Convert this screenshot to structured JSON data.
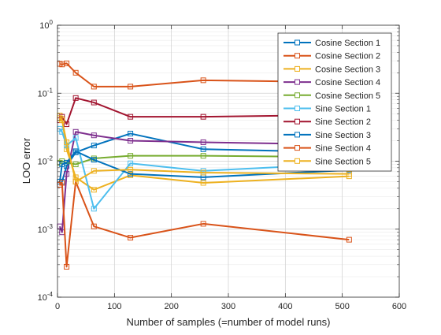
{
  "chart_data": {
    "type": "line",
    "xlabel": "Number of samples (=number of model runs)",
    "ylabel": "LOO error",
    "xlim": [
      0,
      600
    ],
    "ylim": [
      0.0001,
      1
    ],
    "yscale": "log",
    "grid": "major and minor (log)",
    "marker": "square",
    "legend_position": "top-right",
    "x_ticks": [
      {
        "value": 0,
        "label": "0"
      },
      {
        "value": 100,
        "label": "100"
      },
      {
        "value": 200,
        "label": "200"
      },
      {
        "value": 300,
        "label": "300"
      },
      {
        "value": 400,
        "label": "400"
      },
      {
        "value": 500,
        "label": "500"
      },
      {
        "value": 600,
        "label": "600"
      }
    ],
    "y_ticks": [
      {
        "value": 0.0001,
        "base": "10",
        "exp": "-4"
      },
      {
        "value": 0.001,
        "base": "10",
        "exp": "-3"
      },
      {
        "value": 0.01,
        "base": "10",
        "exp": "-2"
      },
      {
        "value": 0.1,
        "base": "10",
        "exp": "-1"
      },
      {
        "value": 1,
        "base": "10",
        "exp": "0"
      }
    ],
    "x": [
      4,
      8,
      16,
      32,
      64,
      128,
      256,
      512
    ],
    "series": [
      {
        "name": "Cosine Section 1",
        "color": "#0072BD",
        "values": [
          0.0045,
          0.005,
          0.0085,
          0.0135,
          0.017,
          0.0255,
          0.015,
          0.0135
        ]
      },
      {
        "name": "Cosine Section 2",
        "color": "#D95319",
        "values": [
          0.27,
          0.265,
          0.275,
          0.2,
          0.125,
          0.125,
          0.155,
          0.145
        ]
      },
      {
        "name": "Cosine Section 3",
        "color": "#EDB120",
        "values": [
          0.047,
          0.042,
          0.015,
          0.0058,
          0.0038,
          0.0062,
          0.0048,
          0.006
        ]
      },
      {
        "name": "Cosine Section 4",
        "color": "#7E2F8E",
        "values": [
          0.0011,
          0.0009,
          0.0065,
          0.027,
          0.024,
          0.02,
          0.019,
          0.0175
        ]
      },
      {
        "name": "Cosine Section 5",
        "color": "#77AC30",
        "values": [
          0.0095,
          0.01,
          0.0095,
          0.009,
          0.011,
          0.012,
          0.012,
          0.0115
        ]
      },
      {
        "name": "Sine Section 1",
        "color": "#4DBEEE",
        "values": [
          0.03,
          0.027,
          0.017,
          0.022,
          0.002,
          0.0093,
          0.0072,
          0.0092
        ]
      },
      {
        "name": "Sine Section 2",
        "color": "#A2142F",
        "values": [
          0.04,
          0.045,
          0.035,
          0.085,
          0.073,
          0.045,
          0.045,
          0.048
        ]
      },
      {
        "name": "Sine Section 3",
        "color": "#0072BD",
        "values": [
          0.005,
          0.009,
          0.0095,
          0.014,
          0.0105,
          0.0065,
          0.0058,
          0.0074
        ]
      },
      {
        "name": "Sine Section 4",
        "color": "#D95319",
        "values": [
          0.0045,
          0.0048,
          0.00028,
          0.005,
          0.0011,
          0.00075,
          0.0012,
          0.0007
        ]
      },
      {
        "name": "Sine Section 5",
        "color": "#EDB120",
        "values": [
          0.043,
          0.04,
          0.019,
          0.005,
          0.0072,
          0.0075,
          0.0068,
          0.0065
        ]
      }
    ]
  }
}
